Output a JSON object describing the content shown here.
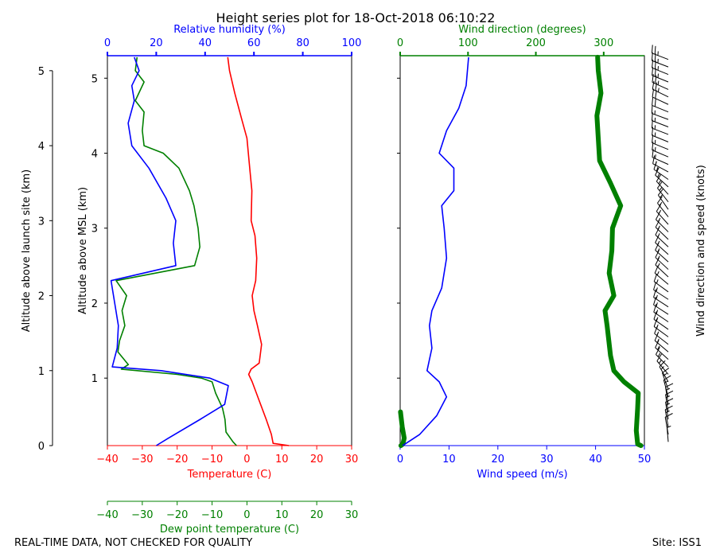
{
  "title": "Height series plot for 18-Oct-2018 06:10:22",
  "footer": {
    "left": "REAL-TIME DATA, NOT CHECKED FOR QUALITY",
    "right": "Site: ISS1"
  },
  "colors": {
    "temperature": "#ff0000",
    "dewpoint": "#008000",
    "rh": "#0000ff",
    "wind_speed": "#0000ff",
    "wind_dir": "#008000",
    "barb": "#000000"
  },
  "chart_data": [
    {
      "type": "line",
      "id": "thermo",
      "ylabel": "Altitude above MSL (km)",
      "ylim": [
        0.1,
        5.3
      ],
      "yticks": [
        1,
        2,
        3,
        4,
        5
      ],
      "ytick_labels": [
        "1",
        "2",
        "3",
        "4",
        "5"
      ],
      "ylabel_agl": "Altitude above launch site (km)",
      "agl_ticks": [
        0,
        1,
        2,
        3,
        4,
        5
      ],
      "agl_tick_labels": [
        "0",
        "1",
        "2",
        "3",
        "4",
        "5"
      ],
      "agl_offset_km": 0.1,
      "x_axes": {
        "temperature": {
          "label": "Temperature (C)",
          "lim": [
            -40,
            30
          ],
          "ticks": [
            -40,
            -30,
            -20,
            -10,
            0,
            10,
            20,
            30
          ],
          "tick_labels": [
            "−40",
            "−30",
            "−20",
            "−10",
            "0",
            "10",
            "20",
            "30"
          ]
        },
        "dewpoint": {
          "label": "Dew point temperature (C)",
          "lim": [
            -40,
            30
          ],
          "ticks": [
            -40,
            -30,
            -20,
            -10,
            0,
            10,
            20,
            30
          ],
          "tick_labels": [
            "−40",
            "−30",
            "−20",
            "−10",
            "0",
            "10",
            "20",
            "30"
          ]
        },
        "rh": {
          "label": "Relative humidity (%)",
          "lim": [
            0,
            100
          ],
          "ticks": [
            0,
            20,
            40,
            60,
            80,
            100
          ],
          "tick_labels": [
            "0",
            "20",
            "40",
            "60",
            "80",
            "100"
          ]
        }
      },
      "series": [
        {
          "name": "Temperature",
          "axis": "temperature",
          "points": [
            [
              12.0,
              0.1
            ],
            [
              7.5,
              0.13
            ],
            [
              7.0,
              0.25
            ],
            [
              5.5,
              0.45
            ],
            [
              3.5,
              0.7
            ],
            [
              1.5,
              0.95
            ],
            [
              0.5,
              1.05
            ],
            [
              1.2,
              1.12
            ],
            [
              3.5,
              1.2
            ],
            [
              4.2,
              1.45
            ],
            [
              3.0,
              1.7
            ],
            [
              2.0,
              1.9
            ],
            [
              1.5,
              2.1
            ],
            [
              2.5,
              2.3
            ],
            [
              2.8,
              2.6
            ],
            [
              2.3,
              2.9
            ],
            [
              1.2,
              3.1
            ],
            [
              1.4,
              3.5
            ],
            [
              0.8,
              3.8
            ],
            [
              0.0,
              4.2
            ],
            [
              -1.5,
              4.45
            ],
            [
              -3.5,
              4.8
            ],
            [
              -5.0,
              5.1
            ],
            [
              -5.5,
              5.28
            ]
          ]
        },
        {
          "name": "Dew point",
          "axis": "dewpoint",
          "points": [
            [
              -3.0,
              0.1
            ],
            [
              -4.0,
              0.15
            ],
            [
              -6.0,
              0.28
            ],
            [
              -6.3,
              0.45
            ],
            [
              -7.0,
              0.6
            ],
            [
              -9.0,
              0.8
            ],
            [
              -10.0,
              0.95
            ],
            [
              -13.0,
              1.0
            ],
            [
              -20.0,
              1.05
            ],
            [
              -36.0,
              1.12
            ],
            [
              -34.0,
              1.18
            ],
            [
              -37.0,
              1.35
            ],
            [
              -36.5,
              1.5
            ],
            [
              -35.0,
              1.7
            ],
            [
              -35.8,
              1.9
            ],
            [
              -34.5,
              2.1
            ],
            [
              -37.5,
              2.3
            ],
            [
              -15.0,
              2.5
            ],
            [
              -13.5,
              2.75
            ],
            [
              -14.0,
              3.0
            ],
            [
              -15.2,
              3.3
            ],
            [
              -16.5,
              3.5
            ],
            [
              -19.5,
              3.8
            ],
            [
              -24.0,
              4.0
            ],
            [
              -29.5,
              4.1
            ],
            [
              -30.0,
              4.3
            ],
            [
              -29.5,
              4.55
            ],
            [
              -32.0,
              4.7
            ],
            [
              -29.5,
              4.95
            ],
            [
              -32.0,
              5.1
            ],
            [
              -31.5,
              5.28
            ]
          ]
        },
        {
          "name": "Relative humidity",
          "axis": "rh",
          "points": [
            [
              20.0,
              0.1
            ],
            [
              25.0,
              0.2
            ],
            [
              38.0,
              0.45
            ],
            [
              48.0,
              0.65
            ],
            [
              49.5,
              0.9
            ],
            [
              42.0,
              1.0
            ],
            [
              22.0,
              1.1
            ],
            [
              2.0,
              1.15
            ],
            [
              4.0,
              1.4
            ],
            [
              4.5,
              1.7
            ],
            [
              3.0,
              2.0
            ],
            [
              1.5,
              2.3
            ],
            [
              28.0,
              2.5
            ],
            [
              27.0,
              2.8
            ],
            [
              28.0,
              3.1
            ],
            [
              24.0,
              3.4
            ],
            [
              17.0,
              3.8
            ],
            [
              10.0,
              4.1
            ],
            [
              8.5,
              4.4
            ],
            [
              11.0,
              4.7
            ],
            [
              10.0,
              4.9
            ],
            [
              13.0,
              5.1
            ],
            [
              11.0,
              5.28
            ]
          ]
        }
      ]
    },
    {
      "type": "line",
      "id": "wind",
      "ylim": [
        0.1,
        5.3
      ],
      "yticks": [
        1,
        2,
        3,
        4,
        5
      ],
      "x_axes": {
        "speed": {
          "label": "Wind speed (m/s)",
          "lim": [
            0,
            50
          ],
          "ticks": [
            0,
            10,
            20,
            30,
            40,
            50
          ],
          "tick_labels": [
            "0",
            "10",
            "20",
            "30",
            "40",
            "50"
          ]
        },
        "direction": {
          "label": "Wind direction (degrees)",
          "lim": [
            0,
            360
          ],
          "ticks": [
            0,
            100,
            200,
            300
          ],
          "tick_labels": [
            "0",
            "100",
            "200",
            "300"
          ]
        }
      },
      "series": [
        {
          "name": "Wind speed",
          "axis": "speed",
          "points": [
            [
              0.5,
              0.1
            ],
            [
              4.0,
              0.25
            ],
            [
              7.5,
              0.5
            ],
            [
              9.5,
              0.75
            ],
            [
              8.0,
              0.95
            ],
            [
              5.5,
              1.1
            ],
            [
              6.5,
              1.4
            ],
            [
              6.0,
              1.7
            ],
            [
              6.5,
              1.9
            ],
            [
              8.5,
              2.2
            ],
            [
              9.5,
              2.6
            ],
            [
              9.0,
              3.0
            ],
            [
              8.5,
              3.3
            ],
            [
              11.0,
              3.5
            ],
            [
              11.0,
              3.8
            ],
            [
              8.0,
              4.0
            ],
            [
              9.5,
              4.3
            ],
            [
              12.0,
              4.6
            ],
            [
              13.5,
              4.9
            ],
            [
              14.0,
              5.28
            ]
          ]
        },
        {
          "name": "Wind direction",
          "axis": "direction",
          "points": [
            [
              355,
              0.1
            ],
            [
              350,
              0.12
            ],
            [
              348,
              0.3
            ],
            [
              350,
              0.6
            ],
            [
              351,
              0.8
            ],
            [
              330,
              0.95
            ],
            [
              315,
              1.1
            ],
            [
              310,
              1.3
            ],
            [
              305,
              1.7
            ],
            [
              302,
              1.9
            ],
            [
              315,
              2.1
            ],
            [
              308,
              2.4
            ],
            [
              312,
              2.7
            ],
            [
              313,
              3.0
            ],
            [
              325,
              3.3
            ],
            [
              310,
              3.6
            ],
            [
              294,
              3.9
            ],
            [
              292,
              4.2
            ],
            [
              290,
              4.5
            ],
            [
              296,
              4.8
            ],
            [
              292,
              5.1
            ],
            [
              291,
              5.28
            ]
          ]
        }
      ]
    },
    {
      "type": "barbs",
      "id": "barbs",
      "ylabel": "Wind direction and speed (knots)",
      "ylim": [
        0.1,
        5.3
      ],
      "levels": [
        0.15,
        0.25,
        0.35,
        0.45,
        0.55,
        0.65,
        0.75,
        0.85,
        0.95,
        1.05,
        1.15,
        1.25,
        1.35,
        1.45,
        1.55,
        1.65,
        1.75,
        1.85,
        1.95,
        2.05,
        2.15,
        2.25,
        2.35,
        2.45,
        2.55,
        2.65,
        2.75,
        2.85,
        2.95,
        3.05,
        3.15,
        3.25,
        3.35,
        3.45,
        3.55,
        3.65,
        3.75,
        3.85,
        3.95,
        4.05,
        4.15,
        4.25,
        4.35,
        4.45,
        4.55,
        4.65,
        4.75,
        4.85,
        4.95,
        5.05,
        5.15,
        5.25
      ],
      "speeds_kt": [
        5,
        10,
        15,
        15,
        15,
        15,
        15,
        15,
        15,
        15,
        15,
        15,
        15,
        15,
        15,
        15,
        15,
        15,
        15,
        15,
        15,
        15,
        15,
        15,
        15,
        15,
        15,
        15,
        15,
        15,
        15,
        15,
        15,
        15,
        15,
        15,
        15,
        15,
        15,
        15,
        15,
        15,
        15,
        15,
        20,
        20,
        25,
        25,
        25,
        25,
        25,
        25
      ],
      "directions_deg": [
        355,
        350,
        350,
        351,
        351,
        351,
        345,
        340,
        330,
        320,
        315,
        312,
        310,
        308,
        306,
        305,
        304,
        303,
        303,
        303,
        306,
        310,
        313,
        313,
        312,
        312,
        313,
        314,
        315,
        318,
        322,
        325,
        322,
        318,
        312,
        305,
        298,
        294,
        293,
        292,
        292,
        291,
        291,
        290,
        292,
        295,
        296,
        294,
        292,
        292,
        291,
        291
      ]
    }
  ]
}
